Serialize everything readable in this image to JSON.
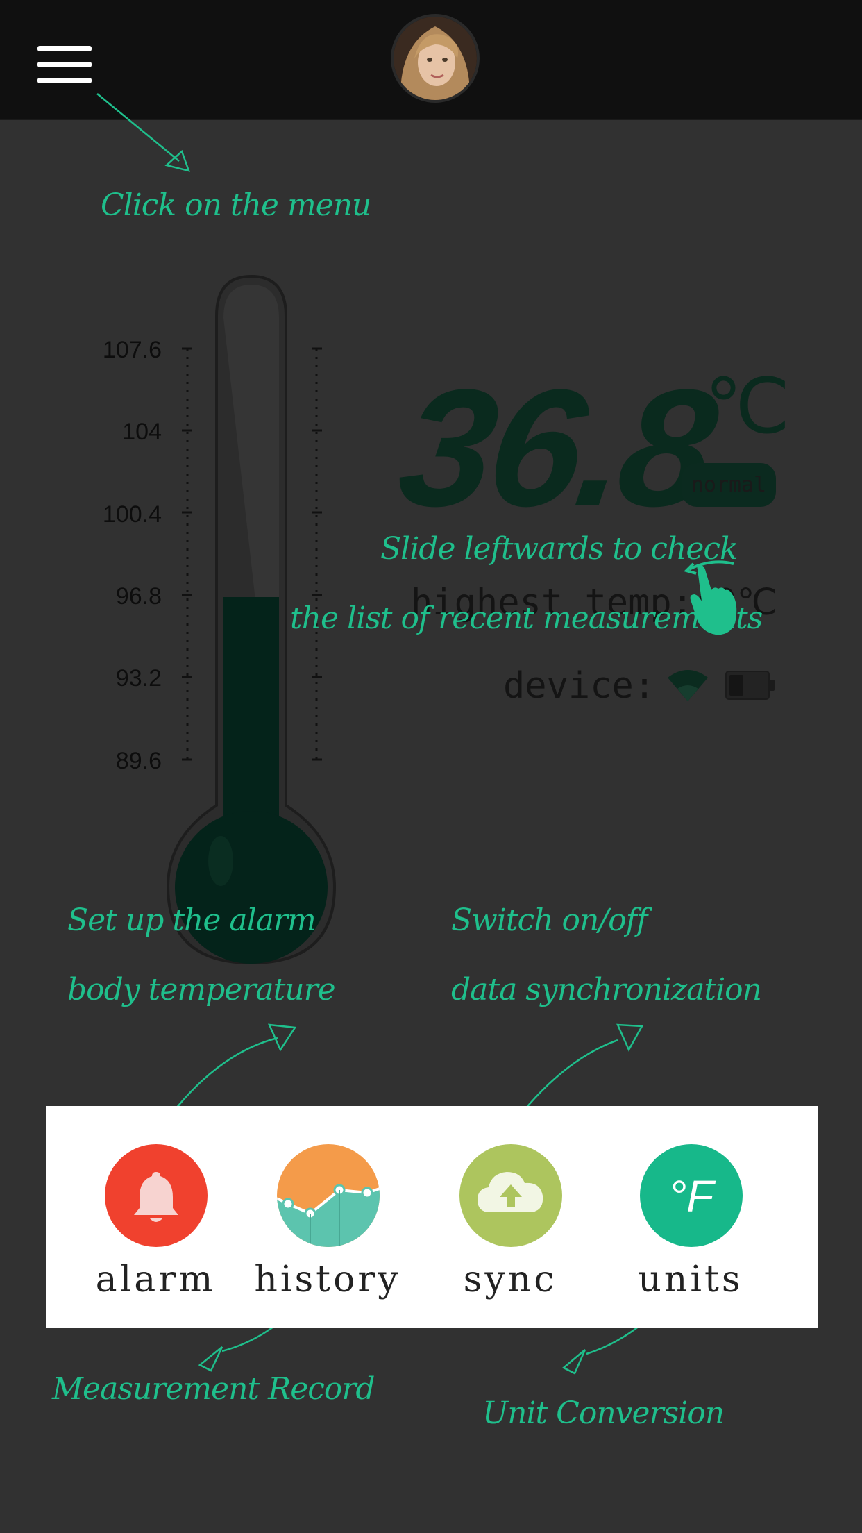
{
  "header": {
    "menu_icon": "hamburger-menu-icon",
    "avatar": "user-avatar"
  },
  "hints": {
    "menu": "Click on the menu",
    "slide_line1": "Slide leftwards to check",
    "slide_line2": "the list of recent measurements",
    "alarm_line1": "Set up the alarm",
    "alarm_line2": "body temperature",
    "sync_line1": "Switch on/off",
    "sync_line2": "data synchronization",
    "history": "Measurement Record",
    "units": "Unit Conversion"
  },
  "thermometer": {
    "scale": [
      "107.6",
      "104",
      "100.4",
      "96.8",
      "93.2",
      "89.6"
    ],
    "fill_level_fraction": 0.4
  },
  "reading": {
    "value": "36.8",
    "unit": "℃",
    "status": "normal",
    "highest_label": "highest temp:40",
    "highest_unit": "℃",
    "device_label": "device:",
    "wifi_icon": "wifi-icon",
    "battery_icon": "battery-icon"
  },
  "toolbar": {
    "items": [
      {
        "label": "alarm",
        "icon": "bell-icon",
        "color": "#f0412e"
      },
      {
        "label": "history",
        "icon": "chart-line-icon",
        "color": "#f49b4a"
      },
      {
        "label": "sync",
        "icon": "cloud-upload-icon",
        "color": "#adc55e"
      },
      {
        "label": "units",
        "icon": "fahrenheit-icon",
        "color": "#17b88a",
        "glyph": "°F"
      }
    ]
  },
  "colors": {
    "background": "#313131",
    "topbar": "#101010",
    "hint_green": "#1fbf8c",
    "mercury": "#04231a"
  }
}
